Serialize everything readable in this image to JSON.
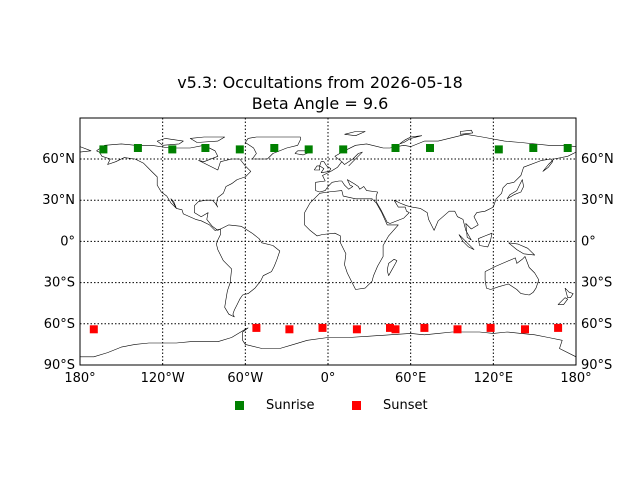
{
  "chart_data": {
    "type": "scatter",
    "title": "v5.3: Occultations from 2026-05-18",
    "subtitle": "Beta Angle = 9.6",
    "xlabel": "",
    "ylabel": "",
    "xlim": [
      -180,
      180
    ],
    "ylim": [
      -90,
      90
    ],
    "x_ticks": [
      {
        "value": -180,
        "label": "180°"
      },
      {
        "value": -120,
        "label": "120°W"
      },
      {
        "value": -60,
        "label": "60°W"
      },
      {
        "value": 0,
        "label": "0°"
      },
      {
        "value": 60,
        "label": "60°E"
      },
      {
        "value": 120,
        "label": "120°E"
      },
      {
        "value": 180,
        "label": "180°"
      }
    ],
    "y_ticks": [
      {
        "value": 60,
        "label": "60°N"
      },
      {
        "value": 30,
        "label": "30°N"
      },
      {
        "value": 0,
        "label": "0°"
      },
      {
        "value": -30,
        "label": "30°S"
      },
      {
        "value": -60,
        "label": "60°S"
      },
      {
        "value": -90,
        "label": "90°S"
      }
    ],
    "grid": true,
    "grid_style": "dotted",
    "legend_position": "bottom-center",
    "series": [
      {
        "name": "Sunrise",
        "color": "#008000",
        "marker": "square",
        "points": [
          {
            "lon": -163,
            "lat": 67
          },
          {
            "lon": -138,
            "lat": 68
          },
          {
            "lon": -113,
            "lat": 67
          },
          {
            "lon": -89,
            "lat": 68
          },
          {
            "lon": -64,
            "lat": 67
          },
          {
            "lon": -39,
            "lat": 68
          },
          {
            "lon": -14,
            "lat": 67
          },
          {
            "lon": 11,
            "lat": 67
          },
          {
            "lon": 49,
            "lat": 68
          },
          {
            "lon": 74,
            "lat": 68
          },
          {
            "lon": 124,
            "lat": 67
          },
          {
            "lon": 149,
            "lat": 68
          },
          {
            "lon": 174,
            "lat": 68
          }
        ]
      },
      {
        "name": "Sunset",
        "color": "#ff0000",
        "marker": "square",
        "points": [
          {
            "lon": -170,
            "lat": -64
          },
          {
            "lon": -52,
            "lat": -63
          },
          {
            "lon": -28,
            "lat": -64
          },
          {
            "lon": -4,
            "lat": -63
          },
          {
            "lon": 21,
            "lat": -64
          },
          {
            "lon": 45,
            "lat": -63
          },
          {
            "lon": 49,
            "lat": -64
          },
          {
            "lon": 70,
            "lat": -63
          },
          {
            "lon": 94,
            "lat": -64
          },
          {
            "lon": 118,
            "lat": -63
          },
          {
            "lon": 143,
            "lat": -64
          },
          {
            "lon": 167,
            "lat": -63
          }
        ]
      }
    ]
  },
  "colors": {
    "frame": "#000000",
    "coastline": "#000000",
    "background": "#ffffff"
  }
}
